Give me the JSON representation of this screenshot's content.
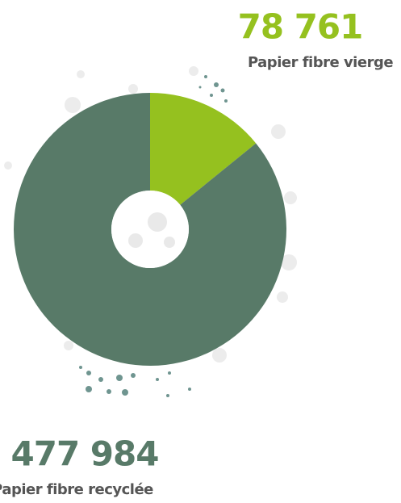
{
  "chart_data": {
    "type": "pie",
    "categories": [
      "Papier fibre vierge",
      "Papier fibre recyclée"
    ],
    "values": [
      78761,
      477984
    ],
    "value_labels": [
      "78 761",
      "477 984"
    ],
    "colors": [
      "#95c11f",
      "#587a68"
    ]
  }
}
